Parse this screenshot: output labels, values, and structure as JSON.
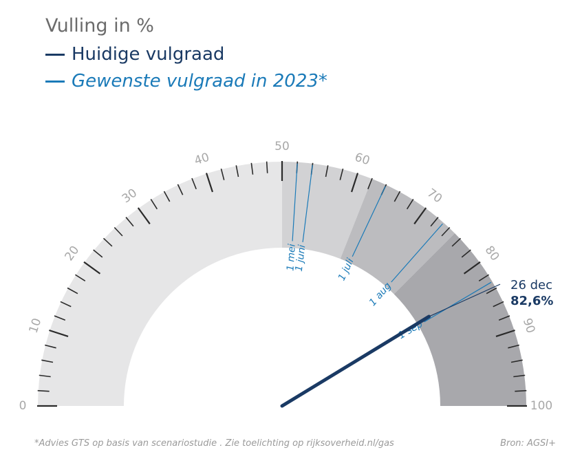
{
  "chart_data": {
    "type": "gauge",
    "title": "Vulling in %",
    "range": [
      0,
      100
    ],
    "tick_labels": [
      "0",
      "10",
      "20",
      "30",
      "40",
      "50",
      "60",
      "70",
      "80",
      "90",
      "100"
    ],
    "legend": [
      {
        "name": "Huidige vulgraad",
        "style": "needle",
        "color": "#1a3a64"
      },
      {
        "name": "Gewenste vulgraad in 2023*",
        "style": "line",
        "color": "#1a7ab8"
      }
    ],
    "current": {
      "date": "26 dec",
      "value": 82.6,
      "label": "82,6%"
    },
    "targets": [
      {
        "label": "1 mei",
        "value": 52
      },
      {
        "label": "1 juni",
        "value": 54
      },
      {
        "label": "1 juli",
        "value": 64
      },
      {
        "label": "1 aug",
        "value": 73
      },
      {
        "label": "1 sep",
        "value": 83
      }
    ],
    "band_colors": [
      "#e6e6e7",
      "#d2d2d4",
      "#bcbcbf",
      "#a8a8ac"
    ],
    "footnote": "*Advies GTS op basis van scenariostudie . Zie toelichting op rijksoverheid.nl/gas",
    "source": "Bron: AGSI+"
  }
}
